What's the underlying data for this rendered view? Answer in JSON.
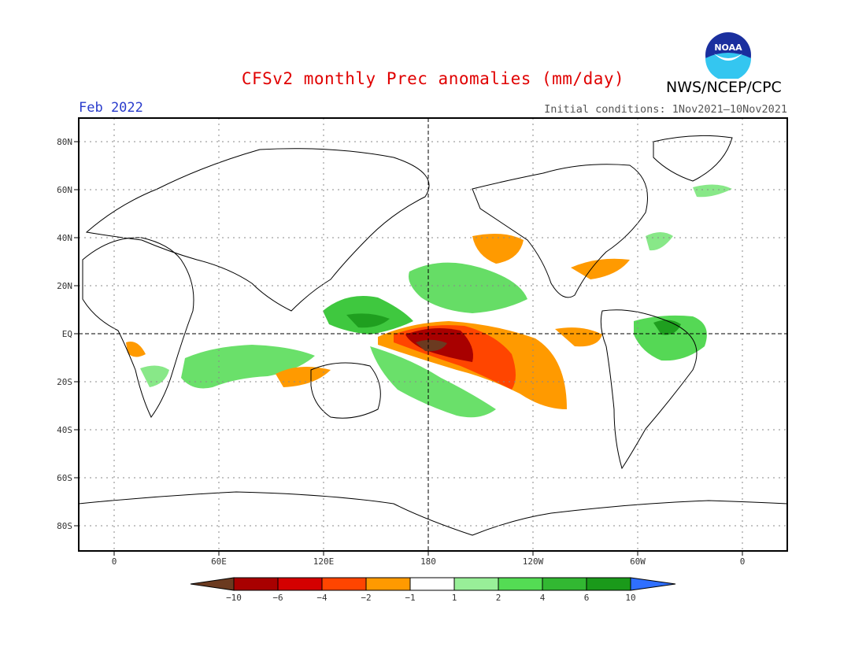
{
  "title": "CFSv2 monthly Prec anomalies (mm/day)",
  "valid_month": "Feb 2022",
  "initial_conditions": "Initial conditions: 1Nov2021–10Nov2021",
  "organization": "NWS/NCEP/CPC",
  "logo": {
    "text": "NOAA",
    "icon": "noaa-logo"
  },
  "axes": {
    "lat_labels": [
      "80N",
      "60N",
      "40N",
      "20N",
      "EQ",
      "20S",
      "40S",
      "60S",
      "80S"
    ],
    "lon_labels": [
      "0",
      "60E",
      "120E",
      "180",
      "120W",
      "60W",
      "0"
    ]
  },
  "colorbar": {
    "labels": [
      "−10",
      "−6",
      "−4",
      "−2",
      "−1",
      "1",
      "2",
      "4",
      "6",
      "10"
    ],
    "colors": [
      "#6b3a20",
      "#a80000",
      "#d40000",
      "#ff4500",
      "#ff9a00",
      "#ffffff",
      "#98ef98",
      "#54dc54",
      "#32b832",
      "#1a9a1a",
      "#2f6fff"
    ]
  },
  "colors": {
    "accent_title": "#e00000",
    "valid_month": "#2a3ccc"
  }
}
